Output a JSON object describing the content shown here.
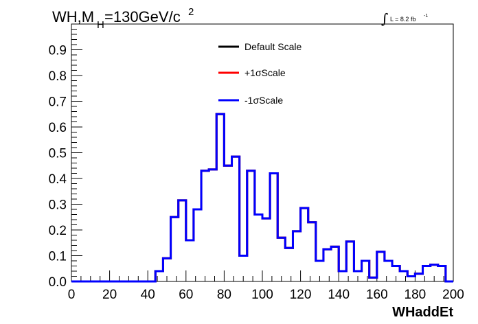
{
  "chart_data": {
    "type": "histogram",
    "title_main": "WH,M",
    "title_sub": "H",
    "title_rest": "=130GeV/c",
    "title_sup": "2",
    "lumi": "L = 8.2 fb",
    "lumi_sup": "-1",
    "lumi_integral": "∫",
    "xlabel": "WHaddEt",
    "ylabel": "",
    "xlim": [
      0,
      200
    ],
    "ylim": [
      0,
      1.0
    ],
    "x_ticks": [
      "0",
      "20",
      "40",
      "60",
      "80",
      "100",
      "120",
      "140",
      "160",
      "180",
      "200"
    ],
    "y_ticks": [
      "0.0",
      "0.1",
      "0.2",
      "0.3",
      "0.4",
      "0.5",
      "0.6",
      "0.7",
      "0.8",
      "0.9"
    ],
    "bin_edges": [
      0,
      4,
      8,
      12,
      16,
      20,
      24,
      28,
      32,
      36,
      40,
      44,
      48,
      52,
      56,
      60,
      64,
      68,
      72,
      76,
      80,
      84,
      88,
      92,
      96,
      100,
      104,
      108,
      112,
      116,
      120,
      124,
      128,
      132,
      136,
      140,
      144,
      148,
      152,
      156,
      160,
      164,
      168,
      172,
      176,
      180,
      184,
      188,
      192,
      196,
      200
    ],
    "series": [
      {
        "name": "Default Scale",
        "color": "#000000",
        "values": [
          0,
          0,
          0,
          0,
          0,
          0,
          0,
          0,
          0,
          0,
          0,
          0.04,
          0.09,
          0.25,
          0.315,
          0.16,
          0.28,
          0.43,
          0.435,
          0.65,
          0.45,
          0.485,
          0.1,
          0.43,
          0.26,
          0.245,
          0.42,
          0.17,
          0.13,
          0.195,
          0.285,
          0.23,
          0.08,
          0.125,
          0.135,
          0.04,
          0.155,
          0.04,
          0.08,
          0.015,
          0.115,
          0.08,
          0.06,
          0.04,
          0.02,
          0.03,
          0.06,
          0.065,
          0.06,
          0.0
        ]
      },
      {
        "name": "+1σScale",
        "color": "#ff0000",
        "values": [
          0,
          0,
          0,
          0,
          0,
          0,
          0,
          0,
          0,
          0,
          0,
          0.04,
          0.09,
          0.25,
          0.315,
          0.16,
          0.28,
          0.43,
          0.435,
          0.65,
          0.45,
          0.485,
          0.1,
          0.43,
          0.26,
          0.245,
          0.42,
          0.17,
          0.13,
          0.195,
          0.285,
          0.23,
          0.08,
          0.125,
          0.135,
          0.04,
          0.155,
          0.04,
          0.08,
          0.015,
          0.115,
          0.08,
          0.06,
          0.04,
          0.02,
          0.03,
          0.06,
          0.065,
          0.06,
          0.0
        ]
      },
      {
        "name": "-1σScale",
        "color": "#0000ff",
        "values": [
          0,
          0,
          0,
          0,
          0,
          0,
          0,
          0,
          0,
          0,
          0,
          0.04,
          0.09,
          0.25,
          0.315,
          0.16,
          0.28,
          0.43,
          0.435,
          0.65,
          0.45,
          0.485,
          0.1,
          0.43,
          0.26,
          0.245,
          0.42,
          0.17,
          0.13,
          0.195,
          0.285,
          0.23,
          0.08,
          0.125,
          0.135,
          0.04,
          0.155,
          0.04,
          0.08,
          0.015,
          0.115,
          0.08,
          0.06,
          0.04,
          0.02,
          0.03,
          0.06,
          0.065,
          0.06,
          0.0
        ]
      }
    ],
    "legend_position": "top-center",
    "grid": false
  }
}
